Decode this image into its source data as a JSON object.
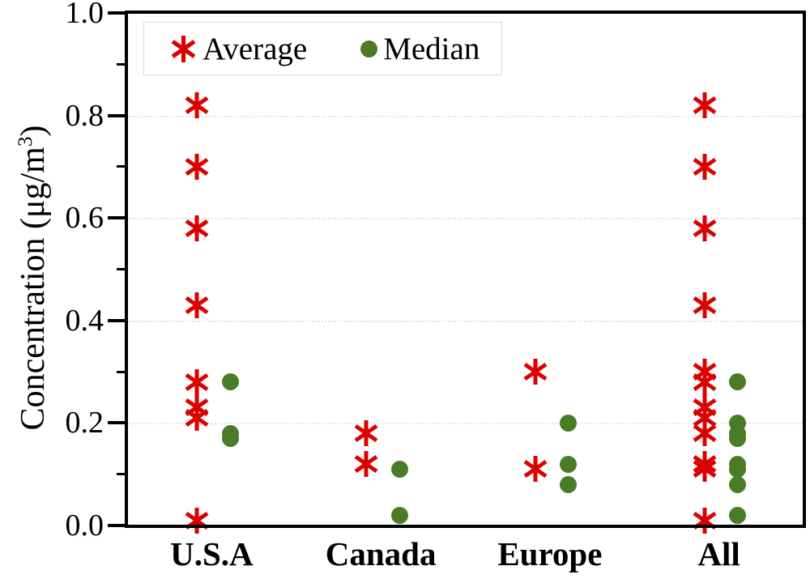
{
  "chart_data": {
    "type": "scatter",
    "title": "",
    "ylabel": "Concentration (μg/m³)",
    "ylabel_prefix": "Concentration (μg/m",
    "ylabel_sup": "3",
    "ylabel_suffix": ")",
    "xlabel": "",
    "categories": [
      "U.S.A",
      "Canada",
      "Europe",
      "All"
    ],
    "ylim": [
      0.0,
      1.0
    ],
    "y_major_ticks": [
      0.0,
      0.2,
      0.4,
      0.6,
      0.8,
      1.0
    ],
    "y_tick_labels": [
      "0.0",
      "0.2",
      "0.4",
      "0.6",
      "0.8",
      "1.0"
    ],
    "y_minor_ticks": [
      0.1,
      0.3,
      0.5,
      0.7,
      0.9
    ],
    "gridline_values": [
      0.2,
      0.4,
      0.6,
      0.8
    ],
    "grid": "horizontal-dotted",
    "legend_position": "top-left-inside",
    "axis_color": "#000000",
    "gridline_color": "#e4e4e4",
    "series": [
      {
        "name": "Average",
        "marker": "asterisk",
        "color": "#dc0000",
        "values": {
          "U.S.A": [
            0.82,
            0.7,
            0.58,
            0.43,
            0.28,
            0.23,
            0.21,
            0.01
          ],
          "Canada": [
            0.18,
            0.12
          ],
          "Europe": [
            0.3,
            0.11
          ],
          "All": [
            0.82,
            0.7,
            0.58,
            0.43,
            0.3,
            0.28,
            0.23,
            0.21,
            0.18,
            0.12,
            0.11,
            0.01
          ]
        }
      },
      {
        "name": "Median",
        "marker": "circle",
        "color": "#4a7c28",
        "values": {
          "U.S.A": [
            0.28,
            0.18,
            0.17
          ],
          "Canada": [
            0.11,
            0.02
          ],
          "Europe": [
            0.2,
            0.12,
            0.08
          ],
          "All": [
            0.28,
            0.2,
            0.18,
            0.17,
            0.12,
            0.11,
            0.08,
            0.02
          ]
        }
      }
    ]
  }
}
